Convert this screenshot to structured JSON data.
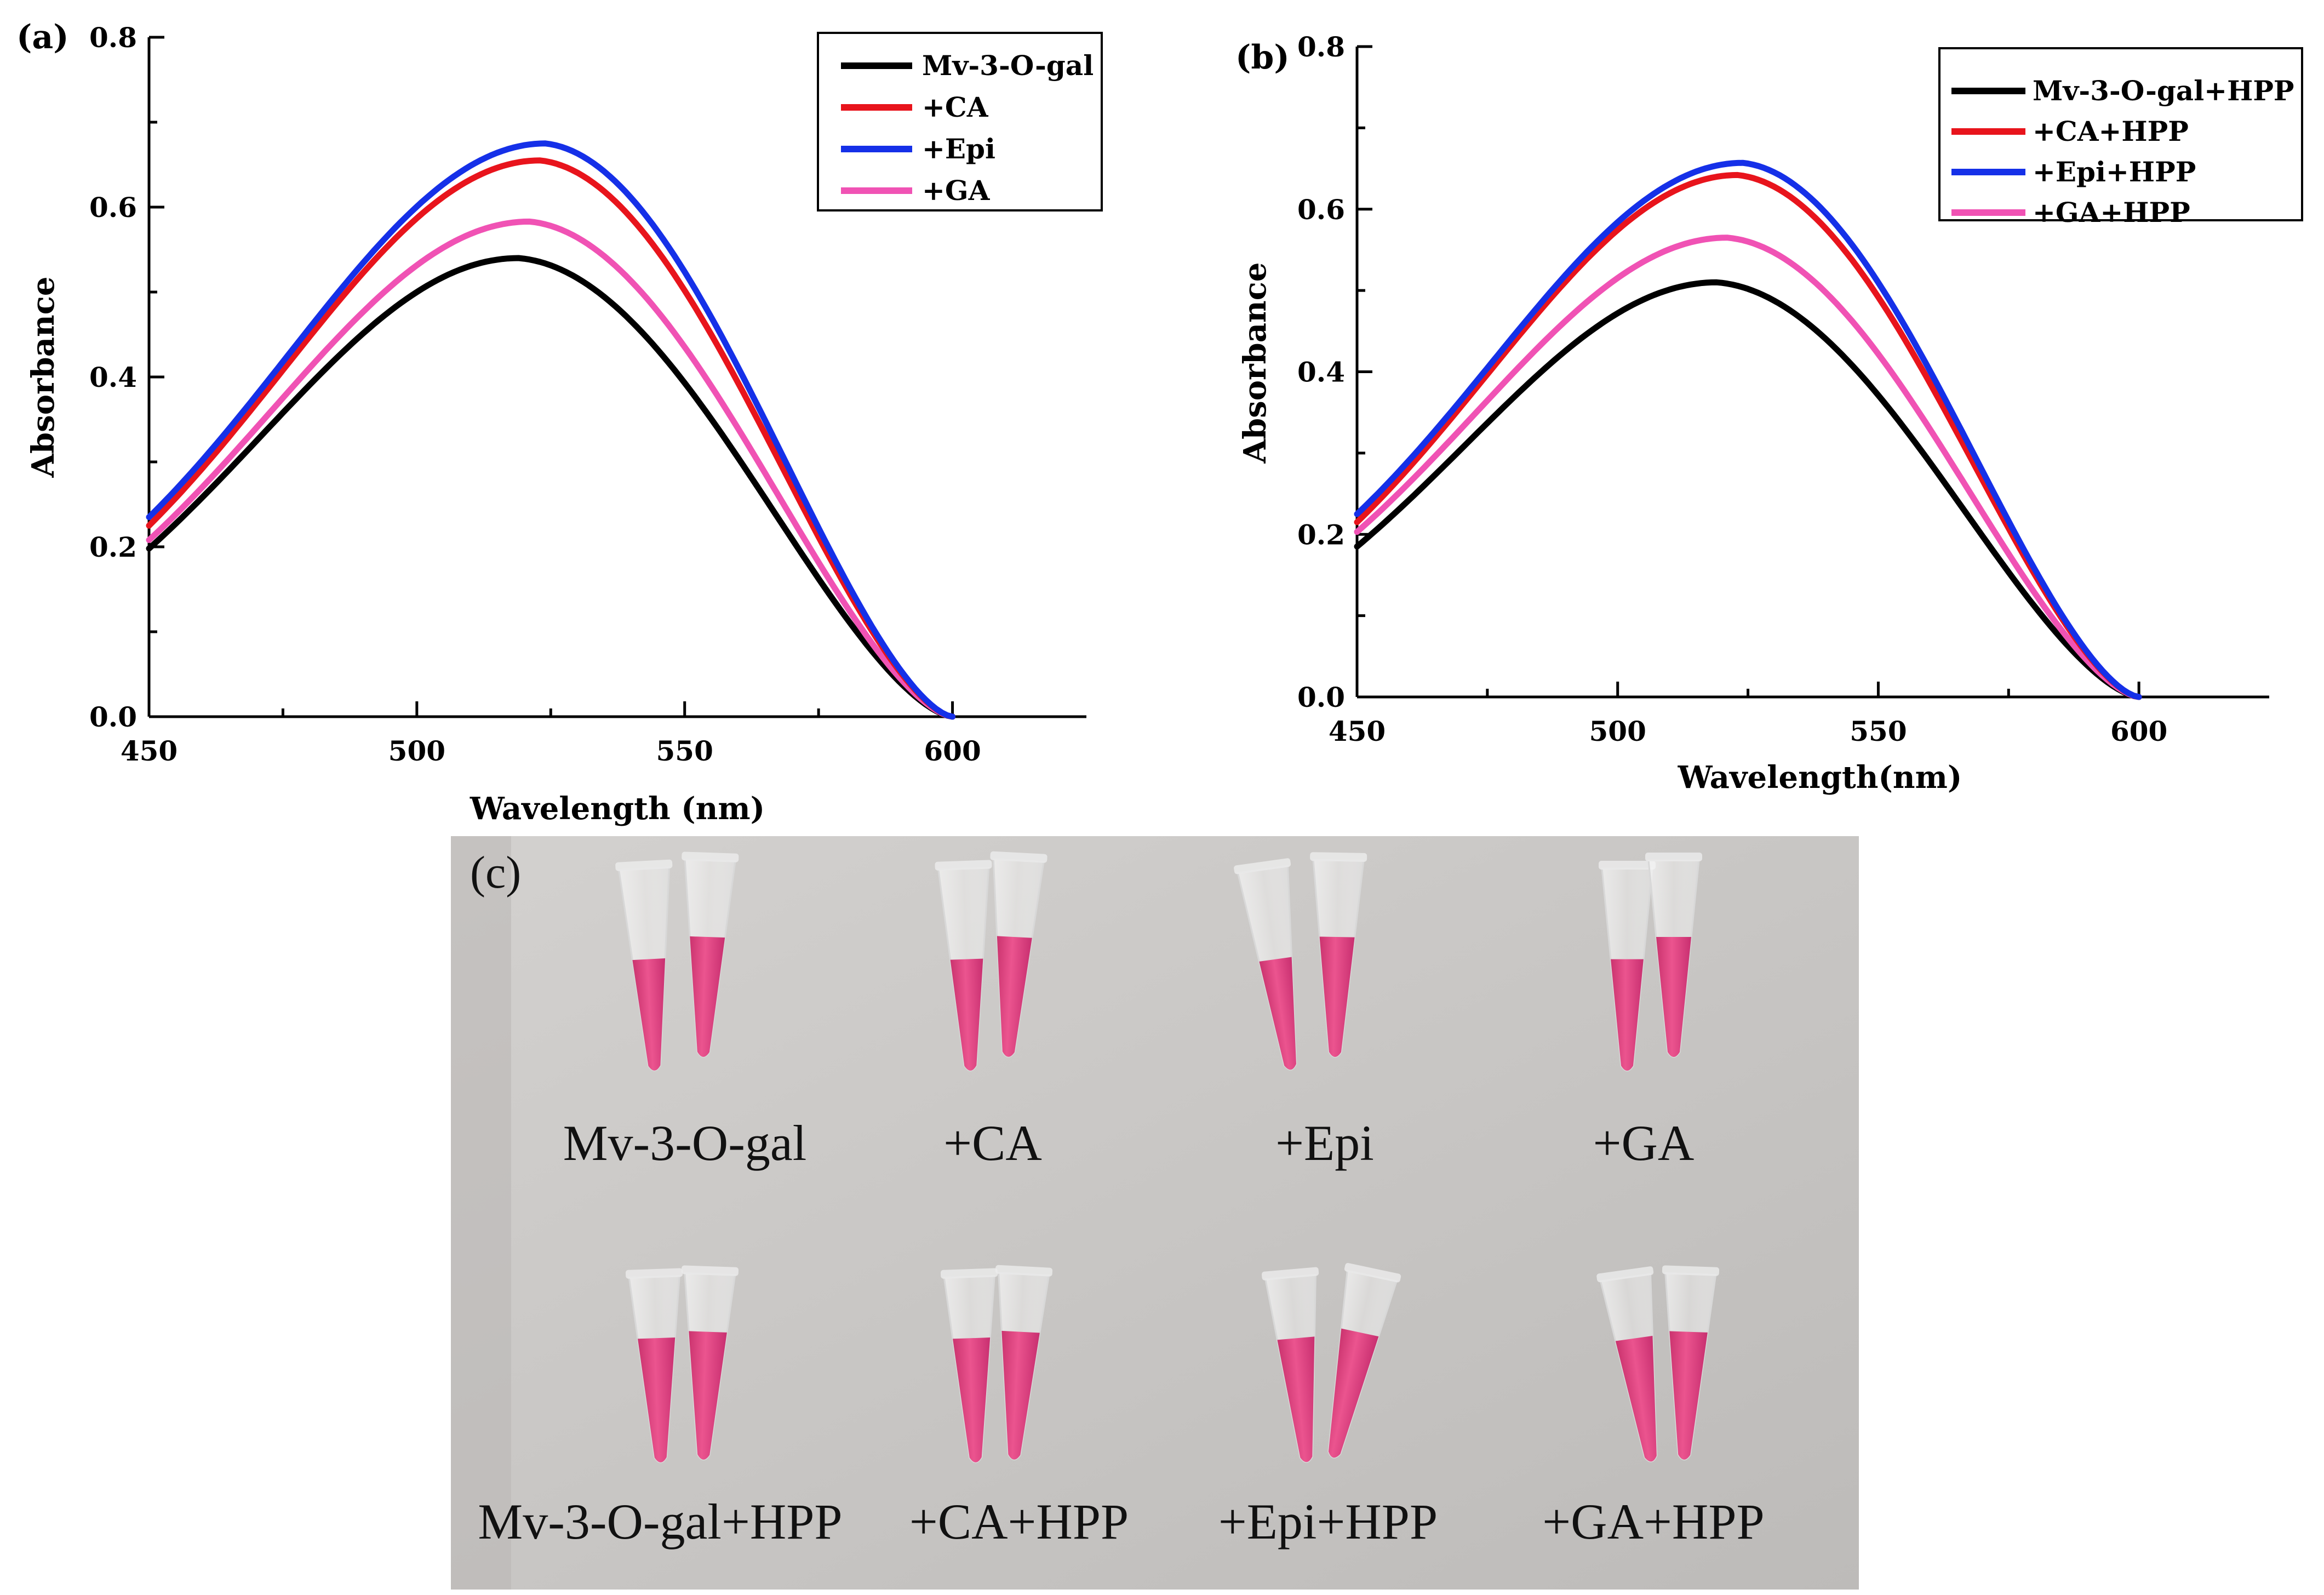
{
  "chart_data": [
    {
      "type": "line",
      "panel_label": "(a)",
      "xlabel": "Wavelength (nm)",
      "ylabel": "Absorbance",
      "xlim": [
        450,
        625
      ],
      "ylim": [
        0.0,
        0.8
      ],
      "xticks": [
        450,
        500,
        550,
        600
      ],
      "yticks": [
        0.0,
        0.2,
        0.4,
        0.6,
        0.8
      ],
      "xtick_labels": [
        "450",
        "500",
        "550",
        "600"
      ],
      "ytick_labels": [
        "0.0",
        "0.2",
        "0.4",
        "0.6",
        "0.8"
      ],
      "legend_position": "top-right",
      "series": [
        {
          "name": "Mv-3-O-gal",
          "color": "#000000",
          "peak_x": 519,
          "peak_y": 0.54,
          "start_y": 0.198
        },
        {
          "name": "+CA",
          "color": "#e8141c",
          "peak_x": 523,
          "peak_y": 0.655,
          "start_y": 0.225
        },
        {
          "name": "+Epi",
          "color": "#1530e8",
          "peak_x": 524,
          "peak_y": 0.675,
          "start_y": 0.235
        },
        {
          "name": "+GA",
          "color": "#f052b4",
          "peak_x": 521,
          "peak_y": 0.583,
          "start_y": 0.208
        }
      ]
    },
    {
      "type": "line",
      "panel_label": "(b)",
      "xlabel": "Wavelength(nm)",
      "ylabel": "Absorbance",
      "xlim": [
        450,
        625
      ],
      "ylim": [
        0.0,
        0.8
      ],
      "xticks": [
        450,
        500,
        550,
        600
      ],
      "yticks": [
        0.0,
        0.2,
        0.4,
        0.6,
        0.8
      ],
      "xtick_labels": [
        "450",
        "500",
        "550",
        "600"
      ],
      "ytick_labels": [
        "0.0",
        "0.2",
        "0.4",
        "0.6",
        "0.8"
      ],
      "legend_position": "top-right",
      "series": [
        {
          "name": "Mv-3-O-gal+HPP",
          "color": "#000000",
          "peak_x": 519,
          "peak_y": 0.51,
          "start_y": 0.185
        },
        {
          "name": "+CA+HPP",
          "color": "#e8141c",
          "peak_x": 523,
          "peak_y": 0.642,
          "start_y": 0.215
        },
        {
          "name": "+Epi+HPP",
          "color": "#1530e8",
          "peak_x": 524,
          "peak_y": 0.657,
          "start_y": 0.225
        },
        {
          "name": "+GA+HPP",
          "color": "#f052b4",
          "peak_x": 521,
          "peak_y": 0.565,
          "start_y": 0.203
        }
      ]
    }
  ],
  "photo": {
    "panel_label": "(c)",
    "row1_labels": [
      "Mv-3-O-gal",
      "+CA",
      "+Epi",
      "+GA"
    ],
    "row2_labels": [
      "Mv-3-O-gal+HPP",
      "+CA+HPP",
      "+Epi+HPP",
      "+GA+HPP"
    ],
    "liquid_color": "#e0417e",
    "background_color": "#c9c7c5"
  }
}
